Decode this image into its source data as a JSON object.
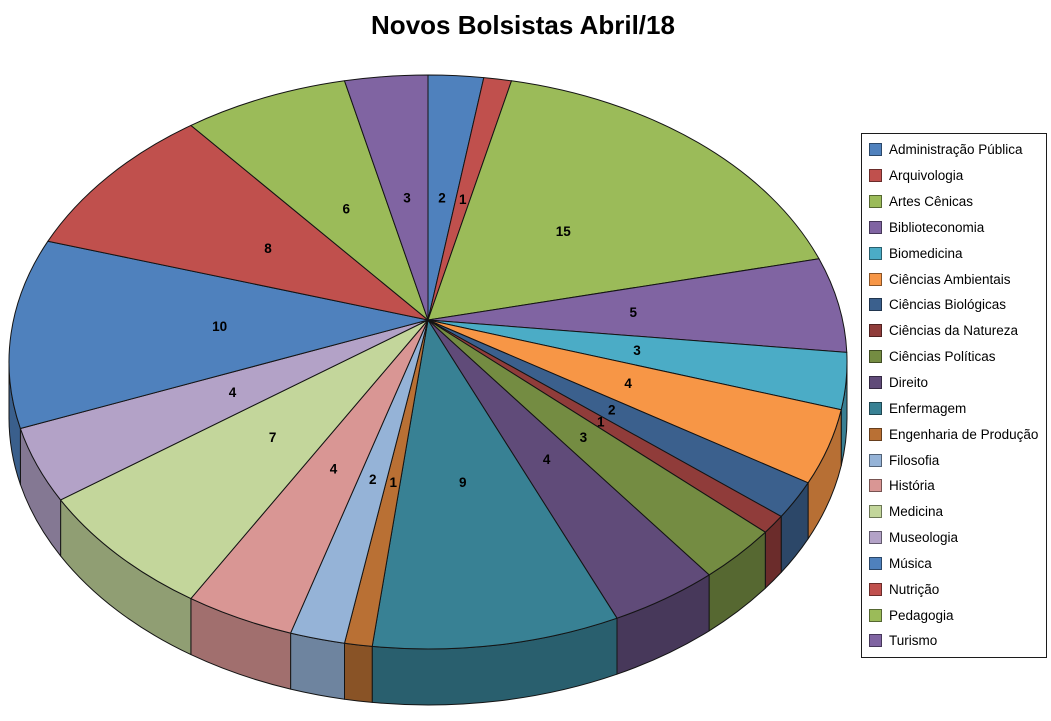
{
  "chart_data": {
    "type": "pie",
    "style": "3d-pie",
    "title": "Novos Bolsistas Abril/18",
    "legend_position": "right",
    "start_angle_deg": 0,
    "direction": "clockwise",
    "background": "#FFFFFF",
    "data_label_color": "#000000",
    "categories": [
      "Administração Pública",
      "Arquivologia",
      "Artes Cênicas",
      "Biblioteconomia",
      "Biomedicina",
      "Ciências Ambientais",
      "Ciências Biológicas",
      "Ciências da Natureza",
      "Ciências Políticas",
      "Direito",
      "Enfermagem",
      "Engenharia de Produção",
      "Filosofia",
      "História",
      "Medicina",
      "Museologia",
      "Música",
      "Nutrição",
      "Pedagogia",
      "Turismo"
    ],
    "values": [
      2,
      1,
      15,
      5,
      3,
      4,
      2,
      1,
      3,
      4,
      9,
      1,
      2,
      4,
      7,
      4,
      10,
      8,
      6,
      3
    ],
    "colors": [
      "#4F81BD",
      "#C0504D",
      "#9BBB59",
      "#8064A2",
      "#4BACC6",
      "#F79646",
      "#3B608D",
      "#903C3A",
      "#748C42",
      "#604B79",
      "#388194",
      "#B97034",
      "#95B3D7",
      "#D99694",
      "#C3D69B",
      "#B3A2C7",
      "#4F81BD",
      "#C0504D",
      "#9BBB59",
      "#8064A2"
    ]
  }
}
